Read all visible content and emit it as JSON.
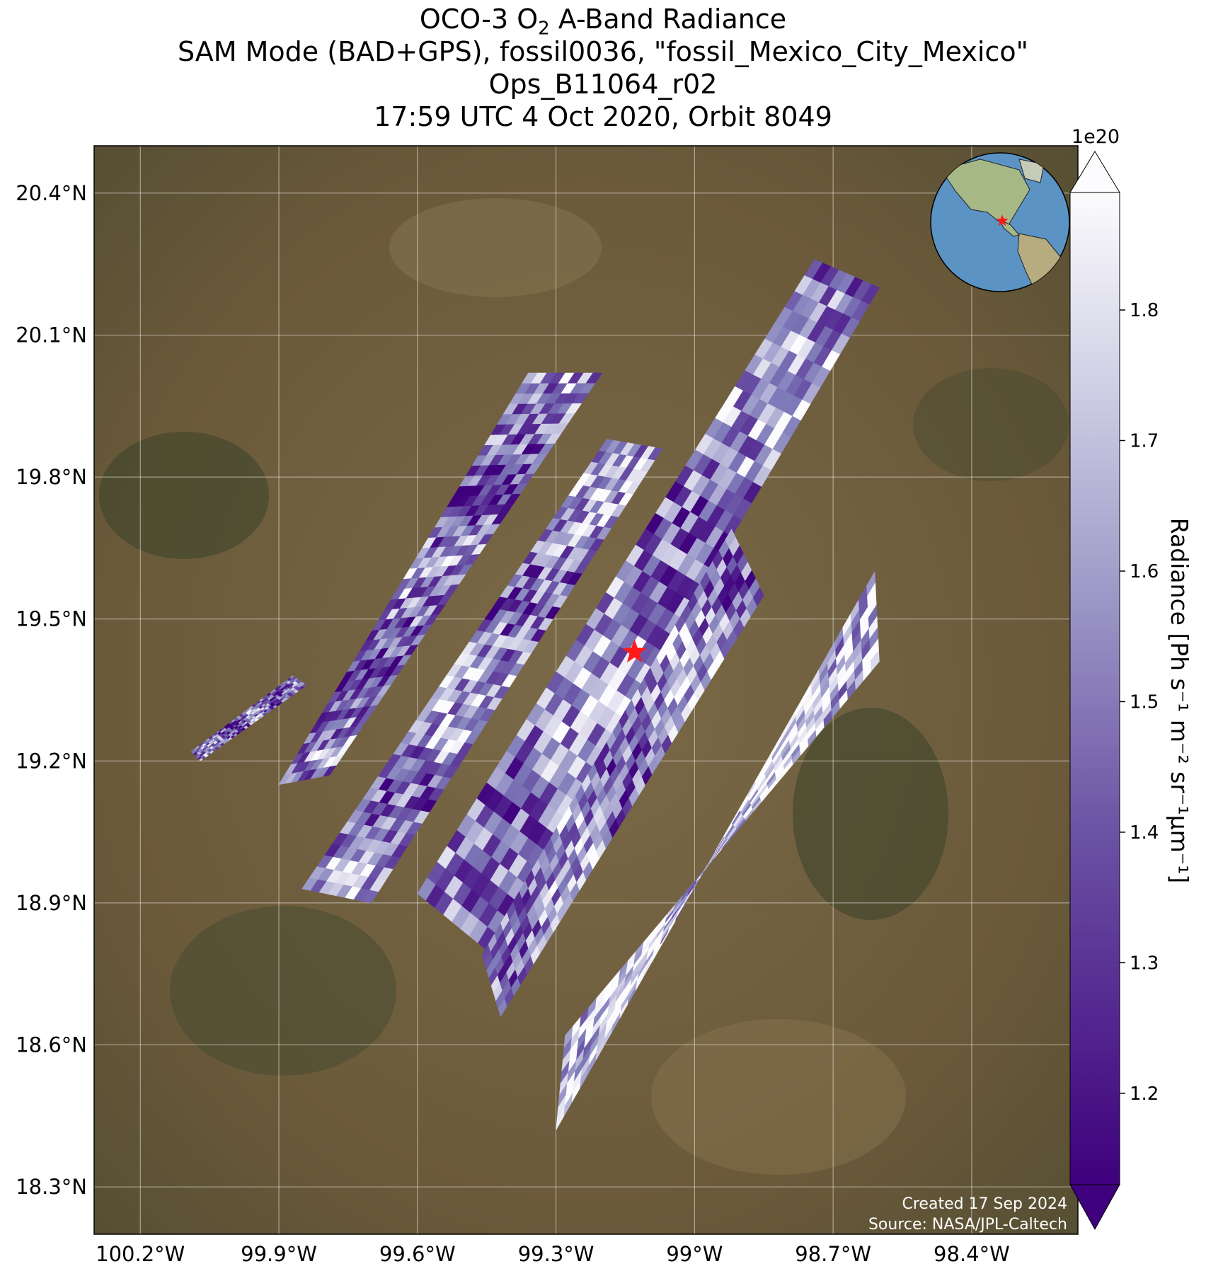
{
  "title": {
    "line1_pre": "OCO-3 O",
    "line1_sub": "2",
    "line1_post": " A-Band Radiance",
    "line2": "SAM Mode (BAD+GPS), fossil0036, \"fossil_Mexico_City_Mexico\"",
    "line3": "Ops_B11064_r02",
    "line4": "17:59 UTC 4 Oct 2020, Orbit 8049"
  },
  "map": {
    "lon_range": [
      -100.3,
      -98.17
    ],
    "lat_range": [
      18.2,
      20.5
    ],
    "lat_ticks": [
      {
        "value": 20.4,
        "label": "20.4°N"
      },
      {
        "value": 20.1,
        "label": "20.1°N"
      },
      {
        "value": 19.8,
        "label": "19.8°N"
      },
      {
        "value": 19.5,
        "label": "19.5°N"
      },
      {
        "value": 19.2,
        "label": "19.2°N"
      },
      {
        "value": 18.9,
        "label": "18.9°N"
      },
      {
        "value": 18.6,
        "label": "18.6°N"
      },
      {
        "value": 18.3,
        "label": "18.3°N"
      }
    ],
    "lon_ticks": [
      {
        "value": -100.2,
        "label": "100.2°W"
      },
      {
        "value": -99.9,
        "label": "99.9°W"
      },
      {
        "value": -99.6,
        "label": "99.6°W"
      },
      {
        "value": -99.3,
        "label": "99.3°W"
      },
      {
        "value": -99.0,
        "label": "99°W"
      },
      {
        "value": -98.7,
        "label": "98.7°W"
      },
      {
        "value": -98.4,
        "label": "98.4°W"
      }
    ],
    "target_marker": {
      "lon": -99.13,
      "lat": 19.43,
      "color": "#ff1a1a"
    },
    "background_color": "#6b5a3a",
    "swaths": [
      {
        "corners": [
          [
            -100.09,
            19.22
          ],
          [
            -99.87,
            19.38
          ],
          [
            -99.84,
            19.36
          ],
          [
            -100.07,
            19.2
          ]
        ]
      },
      {
        "corners": [
          [
            -99.9,
            19.15
          ],
          [
            -99.36,
            20.02
          ],
          [
            -99.2,
            20.02
          ],
          [
            -99.79,
            19.17
          ]
        ]
      },
      {
        "corners": [
          [
            -99.85,
            18.93
          ],
          [
            -99.19,
            19.88
          ],
          [
            -99.07,
            19.86
          ],
          [
            -99.7,
            18.9
          ]
        ]
      },
      {
        "corners": [
          [
            -99.6,
            18.92
          ],
          [
            -98.74,
            20.26
          ],
          [
            -98.6,
            20.2
          ],
          [
            -99.45,
            18.8
          ]
        ]
      },
      {
        "corners": [
          [
            -99.46,
            18.79
          ],
          [
            -98.92,
            19.69
          ],
          [
            -98.85,
            19.55
          ],
          [
            -99.42,
            18.66
          ]
        ]
      },
      {
        "corners": [
          [
            -99.3,
            18.42
          ],
          [
            -98.61,
            19.6
          ],
          [
            -98.6,
            19.41
          ],
          [
            -99.28,
            18.62
          ]
        ]
      }
    ]
  },
  "colorbar": {
    "multiplier": "1e20",
    "label_text": "Radiance [Ph s⁻¹ m⁻² sr⁻¹μm⁻¹]",
    "range": [
      1.13,
      1.89
    ],
    "ticks": [
      {
        "value": 1.2,
        "label": "1.2"
      },
      {
        "value": 1.3,
        "label": "1.3"
      },
      {
        "value": 1.4,
        "label": "1.4"
      },
      {
        "value": 1.5,
        "label": "1.5"
      },
      {
        "value": 1.6,
        "label": "1.6"
      },
      {
        "value": 1.7,
        "label": "1.7"
      },
      {
        "value": 1.8,
        "label": "1.8"
      }
    ],
    "colors": {
      "low": "#3f007d",
      "mid": "#807dba",
      "high": "#fcfbfd"
    }
  },
  "credits": {
    "created": "Created 17 Sep 2024",
    "source": "Source: NASA/JPL-Caltech"
  },
  "inset_globe": {
    "ocean": "#5b93c4",
    "land": "#a7b887",
    "marker_color": "#ff1a1a"
  }
}
